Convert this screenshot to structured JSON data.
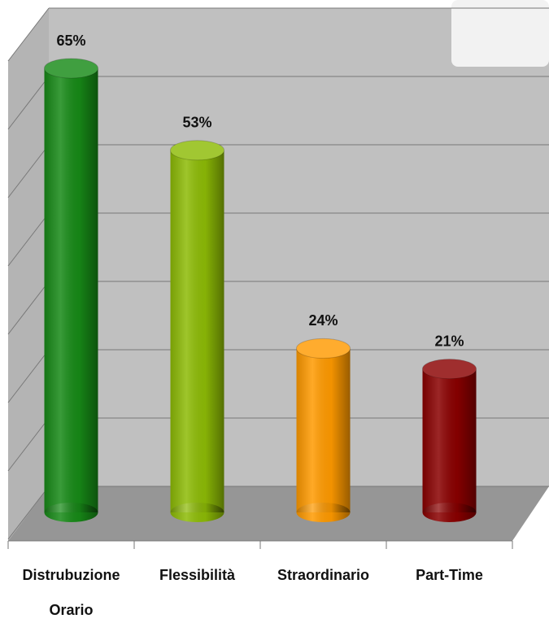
{
  "chart_data": {
    "type": "bar",
    "categories": [
      "Distrubuzione Orario",
      "Flessibilità",
      "Straordinario",
      "Part-Time"
    ],
    "values": [
      65,
      53,
      24,
      21
    ],
    "value_labels": [
      "65%",
      "53%",
      "24%",
      "21%"
    ],
    "colors": [
      "#178a17",
      "#8dbb06",
      "#ff9a00",
      "#8a0000"
    ],
    "ylim": [
      0,
      70
    ],
    "yticks": [
      0,
      10,
      20,
      30,
      40,
      50,
      60,
      70
    ],
    "grid": true
  }
}
